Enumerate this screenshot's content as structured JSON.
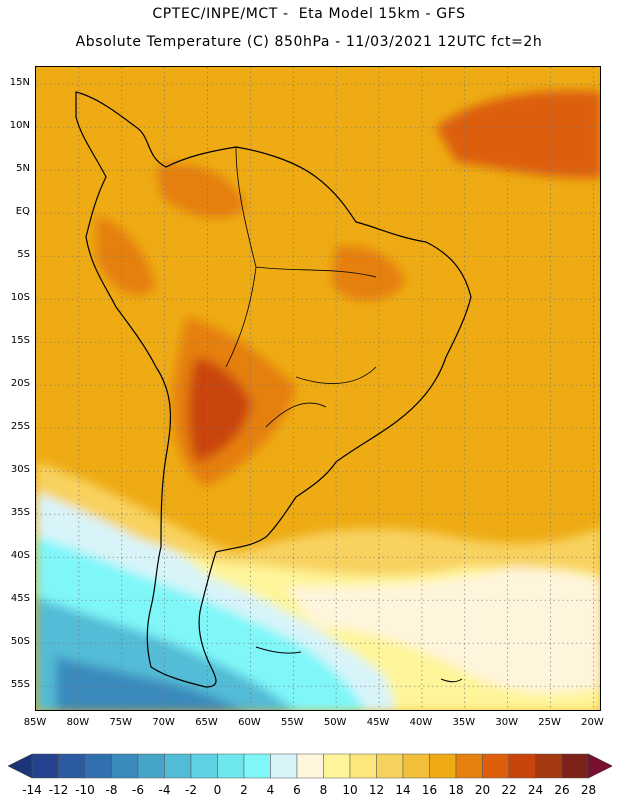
{
  "header": {
    "line1": "CPTEC/INPE/MCT -  Eta Model 15km - GFS",
    "line2": "Absolute Temperature (C) 850hPa - 11/03/2021 12UTC fct=2h"
  },
  "map": {
    "lat_labels": [
      "15N",
      "10N",
      "5N",
      "EQ",
      "5S",
      "10S",
      "15S",
      "20S",
      "25S",
      "30S",
      "35S",
      "40S",
      "45S",
      "50S",
      "55S"
    ],
    "lon_labels": [
      "85W",
      "80W",
      "75W",
      "70W",
      "65W",
      "60W",
      "55W",
      "50W",
      "45W",
      "40W",
      "35W",
      "30W",
      "25W",
      "20W"
    ],
    "grid": "dotted",
    "extent_lat": [
      17,
      -58
    ],
    "extent_lon": [
      -85,
      -19
    ]
  },
  "colorbar": {
    "labels": [
      "-14",
      "-12",
      "-10",
      "-8",
      "-6",
      "-4",
      "-2",
      "0",
      "2",
      "4",
      "6",
      "8",
      "10",
      "12",
      "14",
      "16",
      "18",
      "20",
      "22",
      "24",
      "26",
      "28"
    ],
    "colors": [
      "#25428e",
      "#2b5aa0",
      "#3070ae",
      "#3a8abd",
      "#46a4c8",
      "#52bcd6",
      "#5dd3e4",
      "#6ee6ee",
      "#7ff7f9",
      "#d8f4f9",
      "#fff5dc",
      "#fef59a",
      "#fde67b",
      "#f8d25e",
      "#f2bf3a",
      "#eeab14",
      "#e57f0d",
      "#dd5f0b",
      "#c9440c",
      "#a53a10",
      "#7d2218"
    ]
  }
}
